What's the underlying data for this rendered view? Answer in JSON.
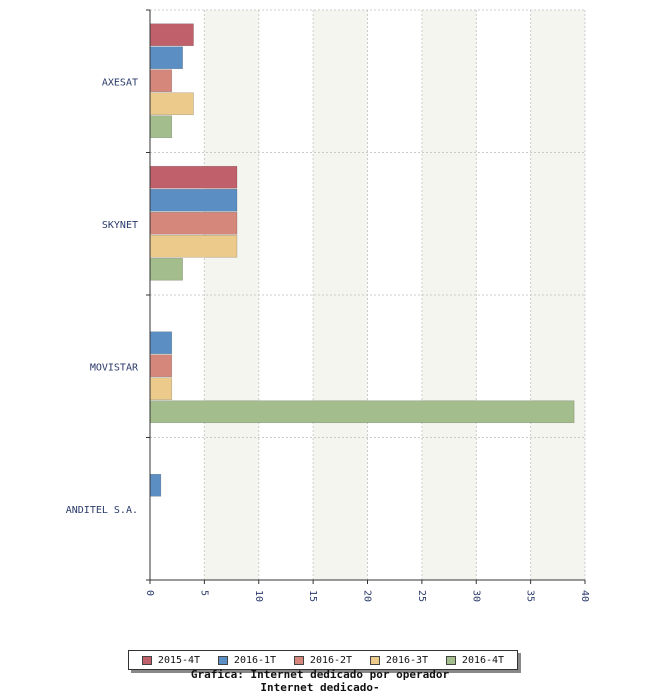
{
  "chart_data": {
    "type": "bar",
    "orientation": "horizontal",
    "categories": [
      "AXESAT",
      "SKYNET",
      "MOVISTAR",
      "ANDITEL S.A."
    ],
    "series": [
      {
        "name": "2015-4T",
        "color": "#c0606a",
        "values": [
          4,
          8,
          null,
          null
        ]
      },
      {
        "name": "2016-1T",
        "color": "#5b8fc4",
        "values": [
          3,
          8,
          2,
          1
        ]
      },
      {
        "name": "2016-2T",
        "color": "#d4877a",
        "values": [
          2,
          8,
          2,
          null
        ]
      },
      {
        "name": "2016-3T",
        "color": "#ecca8c",
        "values": [
          4,
          8,
          2,
          null
        ]
      },
      {
        "name": "2016-4T",
        "color": "#a3bd8d",
        "values": [
          2,
          3,
          39,
          null
        ]
      }
    ],
    "xlim": [
      0,
      40
    ],
    "xticks": [
      "0",
      "5",
      "10",
      "15",
      "20",
      "25",
      "30",
      "35",
      "40"
    ],
    "grid": true,
    "legend_position": "bottom",
    "title": "Grafica: Internet dedicado por operador",
    "subtitle": "Internet dedicado-"
  }
}
